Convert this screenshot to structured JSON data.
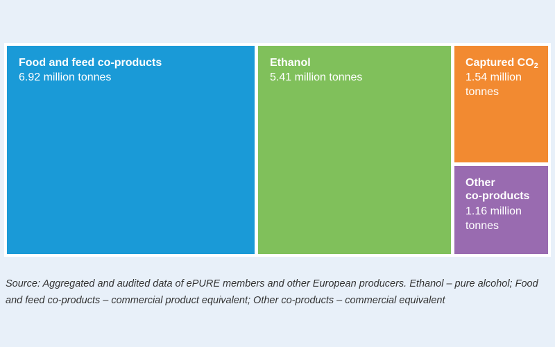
{
  "chart_data": {
    "type": "treemap",
    "unit": "million tonnes",
    "items": [
      {
        "name": "Food and feed co-products",
        "value": 6.92,
        "value_text": "6.92 million tonnes",
        "color": "#1a9ad7"
      },
      {
        "name": "Ethanol",
        "value": 5.41,
        "value_text": "5.41 million tonnes",
        "color": "#80c05b"
      },
      {
        "name": "Captured CO",
        "name_subscript": "2",
        "value": 1.54,
        "value_text": "1.54 million tonnes",
        "color": "#f28a31"
      },
      {
        "name": "Other co-products",
        "value": 1.16,
        "value_text": "1.16 million tonnes",
        "color": "#996bb0"
      }
    ]
  },
  "source_note": "Source: Aggregated and audited data of ePURE members and other European producers. Ethanol – pure alcohol; Food and feed co-products – commercial product equivalent; Other co-products – commercial equivalent",
  "colors": {
    "background": "#e8f0f9",
    "border": "#ffffff",
    "label_text": "#ffffff",
    "source_text": "#333333"
  }
}
